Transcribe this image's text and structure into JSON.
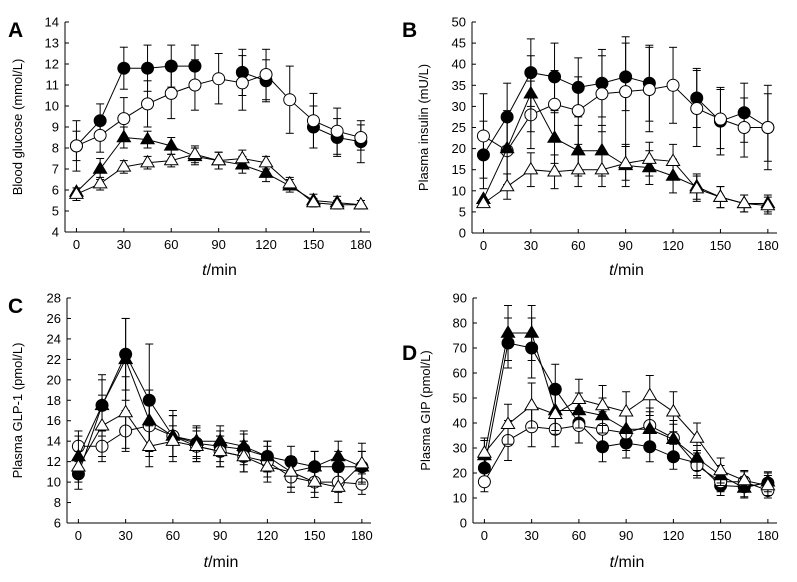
{
  "figure": {
    "x_title_var": "t",
    "x_title_unit": "/min"
  },
  "chart_data": [
    {
      "panel": "A",
      "type": "line",
      "ylabel": "Blood glucose (mmol/L)",
      "xlabel": "t/min",
      "xlim": [
        0,
        180
      ],
      "ylim": [
        4,
        14
      ],
      "x_ticks": [
        0,
        30,
        60,
        90,
        120,
        150,
        180
      ],
      "y_ticks": [
        4,
        5,
        6,
        7,
        8,
        9,
        10,
        11,
        12,
        13,
        14
      ],
      "x": [
        0,
        15,
        30,
        45,
        60,
        75,
        90,
        105,
        120,
        135,
        150,
        165,
        180
      ],
      "series": [
        {
          "name": "filled circle",
          "marker": "circle",
          "fill": "#000000",
          "values": [
            8.1,
            9.3,
            11.8,
            11.8,
            11.9,
            11.9,
            null,
            11.6,
            11.2,
            null,
            9.0,
            8.5,
            8.3
          ],
          "err": [
            1.2,
            0.8,
            1.0,
            1.1,
            1.0,
            1.0,
            null,
            1.1,
            1.0,
            null,
            1.0,
            0.9,
            1.0
          ]
        },
        {
          "name": "open circle",
          "marker": "circle",
          "fill": "#ffffff",
          "values": [
            8.1,
            8.6,
            9.4,
            10.1,
            10.6,
            11.0,
            11.3,
            11.1,
            11.5,
            10.3,
            9.3,
            8.8,
            8.5
          ],
          "err": [
            0.7,
            0.8,
            1.0,
            1.1,
            1.2,
            1.2,
            1.2,
            1.3,
            1.2,
            1.6,
            1.3,
            1.1,
            0.6
          ]
        },
        {
          "name": "filled triangle",
          "marker": "triangle",
          "fill": "#000000",
          "values": [
            5.9,
            7.0,
            8.5,
            8.4,
            8.1,
            7.6,
            7.4,
            7.2,
            6.8,
            6.2,
            5.5,
            5.4,
            5.3
          ],
          "err": [
            null,
            0.5,
            0.5,
            0.4,
            0.4,
            0.4,
            0.4,
            0.4,
            0.4,
            0.3,
            0.3,
            0.3,
            0.2
          ]
        },
        {
          "name": "open triangle",
          "marker": "triangle",
          "fill": "#ffffff",
          "values": [
            5.8,
            6.3,
            7.1,
            7.3,
            7.4,
            7.7,
            7.4,
            7.5,
            7.3,
            6.3,
            5.4,
            5.3,
            5.3
          ],
          "err": [
            0.3,
            0.3,
            0.3,
            0.3,
            0.3,
            0.4,
            0.4,
            0.4,
            0.3,
            0.3,
            0.2,
            0.2,
            0.2
          ]
        }
      ]
    },
    {
      "panel": "B",
      "type": "line",
      "ylabel": "Plasma insulin (mU/L)",
      "xlabel": "t/min",
      "xlim": [
        0,
        180
      ],
      "ylim": [
        0,
        50
      ],
      "x_ticks": [
        0,
        30,
        60,
        90,
        120,
        150,
        180
      ],
      "y_ticks": [
        0,
        5,
        10,
        15,
        20,
        25,
        30,
        35,
        40,
        45,
        50
      ],
      "x": [
        0,
        15,
        30,
        45,
        60,
        75,
        90,
        105,
        120,
        135,
        150,
        165,
        180
      ],
      "series": [
        {
          "name": "filled circle",
          "marker": "circle",
          "fill": "#000000",
          "values": [
            18.5,
            27.5,
            38.0,
            37.0,
            34.5,
            35.5,
            37.0,
            35.5,
            null,
            32.0,
            26.5,
            28.5,
            25.0
          ],
          "err": [
            8.0,
            8.0,
            8.0,
            8.0,
            7.0,
            8.0,
            8.0,
            9.0,
            null,
            7.0,
            8.0,
            7.0,
            10.0
          ]
        },
        {
          "name": "open circle",
          "marker": "circle",
          "fill": "#ffffff",
          "values": [
            23.0,
            19.5,
            28.0,
            30.5,
            29.0,
            33.0,
            33.5,
            34.0,
            35.0,
            29.5,
            27.0,
            25.0,
            25.0
          ],
          "err": [
            10.0,
            8.0,
            8.0,
            8.0,
            8.0,
            9.0,
            13.0,
            10.0,
            9.0,
            9.0,
            7.0,
            7.0,
            8.0
          ]
        },
        {
          "name": "filled triangle",
          "marker": "triangle",
          "fill": "#000000",
          "values": [
            8.0,
            20.0,
            33.0,
            22.5,
            19.5,
            19.5,
            16.0,
            15.5,
            13.5,
            11.0,
            8.5,
            7.0,
            7.0
          ],
          "err": [
            null,
            9.0,
            9.0,
            6.0,
            6.0,
            6.0,
            5.0,
            4.0,
            4.0,
            3.0,
            2.5,
            2.0,
            2.0
          ]
        },
        {
          "name": "open triangle",
          "marker": "triangle",
          "fill": "#ffffff",
          "values": [
            7.0,
            11.0,
            15.0,
            14.5,
            15.0,
            15.0,
            16.5,
            17.5,
            17.0,
            10.5,
            8.5,
            7.0,
            6.5
          ],
          "err": [
            null,
            3.0,
            4.0,
            4.0,
            4.0,
            4.0,
            4.0,
            4.0,
            4.0,
            3.0,
            2.5,
            2.0,
            2.0
          ]
        }
      ]
    },
    {
      "panel": "C",
      "type": "line",
      "ylabel": "Plasma GLP-1 (pmol/L)",
      "xlabel": "t/min",
      "xlim": [
        0,
        180
      ],
      "ylim": [
        6,
        28
      ],
      "x_ticks": [
        0,
        30,
        60,
        90,
        120,
        150,
        180
      ],
      "y_ticks": [
        6,
        8,
        10,
        12,
        14,
        16,
        18,
        20,
        22,
        24,
        26,
        28
      ],
      "x": [
        0,
        15,
        30,
        45,
        60,
        75,
        90,
        105,
        120,
        135,
        150,
        165,
        180
      ],
      "series": [
        {
          "name": "filled circle",
          "marker": "circle",
          "fill": "#000000",
          "values": [
            10.8,
            17.5,
            22.5,
            18.0,
            14.5,
            13.8,
            13.5,
            13.2,
            12.5,
            12.0,
            11.5,
            11.5,
            11.5
          ],
          "err": [
            1.5,
            2.5,
            3.5,
            5.5,
            2.5,
            1.5,
            1.5,
            1.5,
            1.5,
            1.5,
            1.5,
            1.5,
            1.5
          ]
        },
        {
          "name": "open circle",
          "marker": "circle",
          "fill": "#ffffff",
          "values": [
            13.5,
            13.5,
            15.0,
            15.5,
            14.5,
            13.5,
            13.0,
            12.5,
            12.0,
            10.5,
            10.0,
            10.0,
            9.8
          ],
          "err": [
            1.5,
            1.5,
            2.0,
            2.5,
            2.0,
            1.5,
            1.5,
            1.5,
            1.5,
            1.5,
            1.0,
            1.0,
            1.0
          ]
        },
        {
          "name": "filled triangle",
          "marker": "triangle",
          "fill": "#000000",
          "values": [
            12.5,
            17.5,
            22.0,
            16.0,
            14.5,
            14.0,
            14.0,
            13.5,
            12.5,
            11.0,
            11.5,
            12.5,
            11.5
          ],
          "err": [
            2.0,
            3.0,
            4.0,
            3.0,
            2.0,
            1.5,
            1.5,
            1.5,
            1.5,
            1.5,
            1.5,
            1.5,
            1.5
          ]
        },
        {
          "name": "open triangle",
          "marker": "triangle",
          "fill": "#ffffff",
          "values": [
            11.5,
            15.5,
            16.8,
            13.5,
            14.0,
            13.5,
            13.0,
            12.5,
            11.5,
            11.0,
            10.0,
            9.5,
            11.8
          ],
          "err": [
            1.5,
            3.0,
            3.5,
            2.0,
            1.5,
            1.5,
            1.5,
            1.5,
            1.5,
            1.5,
            1.5,
            1.5,
            2.0
          ]
        }
      ]
    },
    {
      "panel": "D",
      "type": "line",
      "ylabel": "Plasma GIP (pmol/L)",
      "xlabel": "t/min",
      "xlim": [
        0,
        180
      ],
      "ylim": [
        0,
        90
      ],
      "x_ticks": [
        0,
        30,
        60,
        90,
        120,
        150,
        180
      ],
      "y_ticks": [
        0,
        10,
        20,
        30,
        40,
        50,
        60,
        70,
        80,
        90
      ],
      "x": [
        0,
        15,
        30,
        45,
        60,
        75,
        90,
        105,
        120,
        135,
        150,
        165,
        180
      ],
      "series": [
        {
          "name": "filled circle",
          "marker": "circle",
          "fill": "#000000",
          "values": [
            22.0,
            72.0,
            70.0,
            53.5,
            40.0,
            30.5,
            32.0,
            30.5,
            26.5,
            24.0,
            15.0,
            14.5,
            16.0
          ],
          "err": [
            5.0,
            10.0,
            12.0,
            10.0,
            8.0,
            6.0,
            6.0,
            6.0,
            5.0,
            5.0,
            4.0,
            4.0,
            4.0
          ]
        },
        {
          "name": "open circle",
          "marker": "circle",
          "fill": "#ffffff",
          "values": [
            16.5,
            33.0,
            38.5,
            37.5,
            39.0,
            37.5,
            36.0,
            39.0,
            34.0,
            23.0,
            16.5,
            16.5,
            13.0
          ],
          "err": [
            4.0,
            8.0,
            8.0,
            7.0,
            7.0,
            7.0,
            7.0,
            7.0,
            7.0,
            5.0,
            4.0,
            4.0,
            3.0
          ]
        },
        {
          "name": "filled triangle",
          "marker": "triangle",
          "fill": "#000000",
          "values": [
            27.0,
            76.0,
            76.0,
            45.0,
            45.0,
            43.0,
            37.5,
            37.5,
            33.5,
            26.0,
            19.0,
            14.0,
            16.5
          ],
          "err": [
            6.0,
            11.0,
            11.0,
            8.0,
            7.0,
            7.0,
            7.0,
            7.0,
            6.0,
            5.0,
            4.0,
            4.0,
            4.0
          ]
        },
        {
          "name": "open triangle",
          "marker": "triangle",
          "fill": "#ffffff",
          "values": [
            28.0,
            39.5,
            47.0,
            43.5,
            49.5,
            47.0,
            44.5,
            51.0,
            44.5,
            34.0,
            21.0,
            17.0,
            15.0
          ],
          "err": [
            6.0,
            8.0,
            9.0,
            8.0,
            8.0,
            8.0,
            8.0,
            8.0,
            8.0,
            6.0,
            5.0,
            4.0,
            4.0
          ]
        }
      ]
    }
  ]
}
